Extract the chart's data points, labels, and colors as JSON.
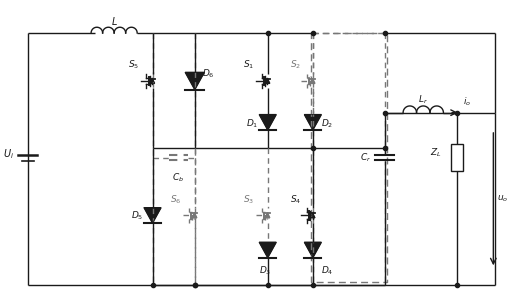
{
  "bg_color": "#ffffff",
  "line_color": "#1a1a1a",
  "dashed_color": "#777777",
  "fig_width": 5.23,
  "fig_height": 3.06,
  "dpi": 100
}
